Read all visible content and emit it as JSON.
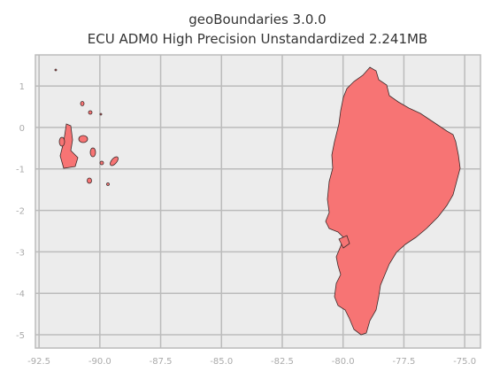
{
  "chart_data": {
    "type": "map",
    "title": "geoBoundaries 3.0.0",
    "subtitle": "ECU ADM0 High Precision Unstandardized 2.241MB",
    "xlim": [
      -92.65,
      -74.35
    ],
    "ylim": [
      -5.32,
      1.75
    ],
    "xticks": [
      -92.5,
      -90.0,
      -87.5,
      -85.0,
      -82.5,
      -80.0,
      -77.5,
      -75.0
    ],
    "yticks": [
      1,
      0,
      -1,
      -2,
      -3,
      -4,
      -5
    ],
    "grid": true
  }
}
